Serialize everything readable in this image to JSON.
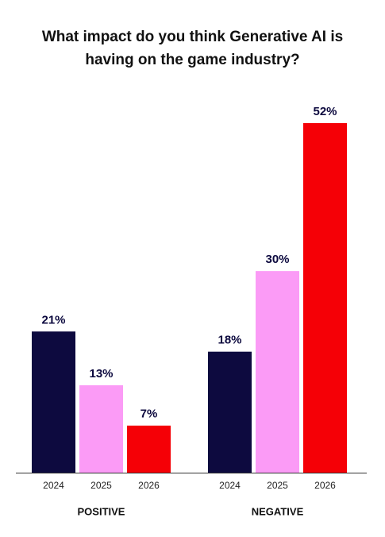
{
  "chart_data": {
    "type": "bar",
    "title": "What impact do you think Generative AI is having on the game industry?",
    "categories": [
      "POSITIVE",
      "NEGATIVE"
    ],
    "series": [
      {
        "name": "2024",
        "color": "#0d0a3f",
        "values": [
          21,
          18
        ],
        "value_labels": [
          "21%",
          "18%"
        ]
      },
      {
        "name": "2025",
        "color": "#fb9bf6",
        "values": [
          13,
          30
        ],
        "value_labels": [
          "13%",
          "30%"
        ]
      },
      {
        "name": "2026",
        "color": "#f50006",
        "values": [
          7,
          52
        ],
        "value_labels": [
          "7%",
          "52%"
        ]
      }
    ]
  }
}
